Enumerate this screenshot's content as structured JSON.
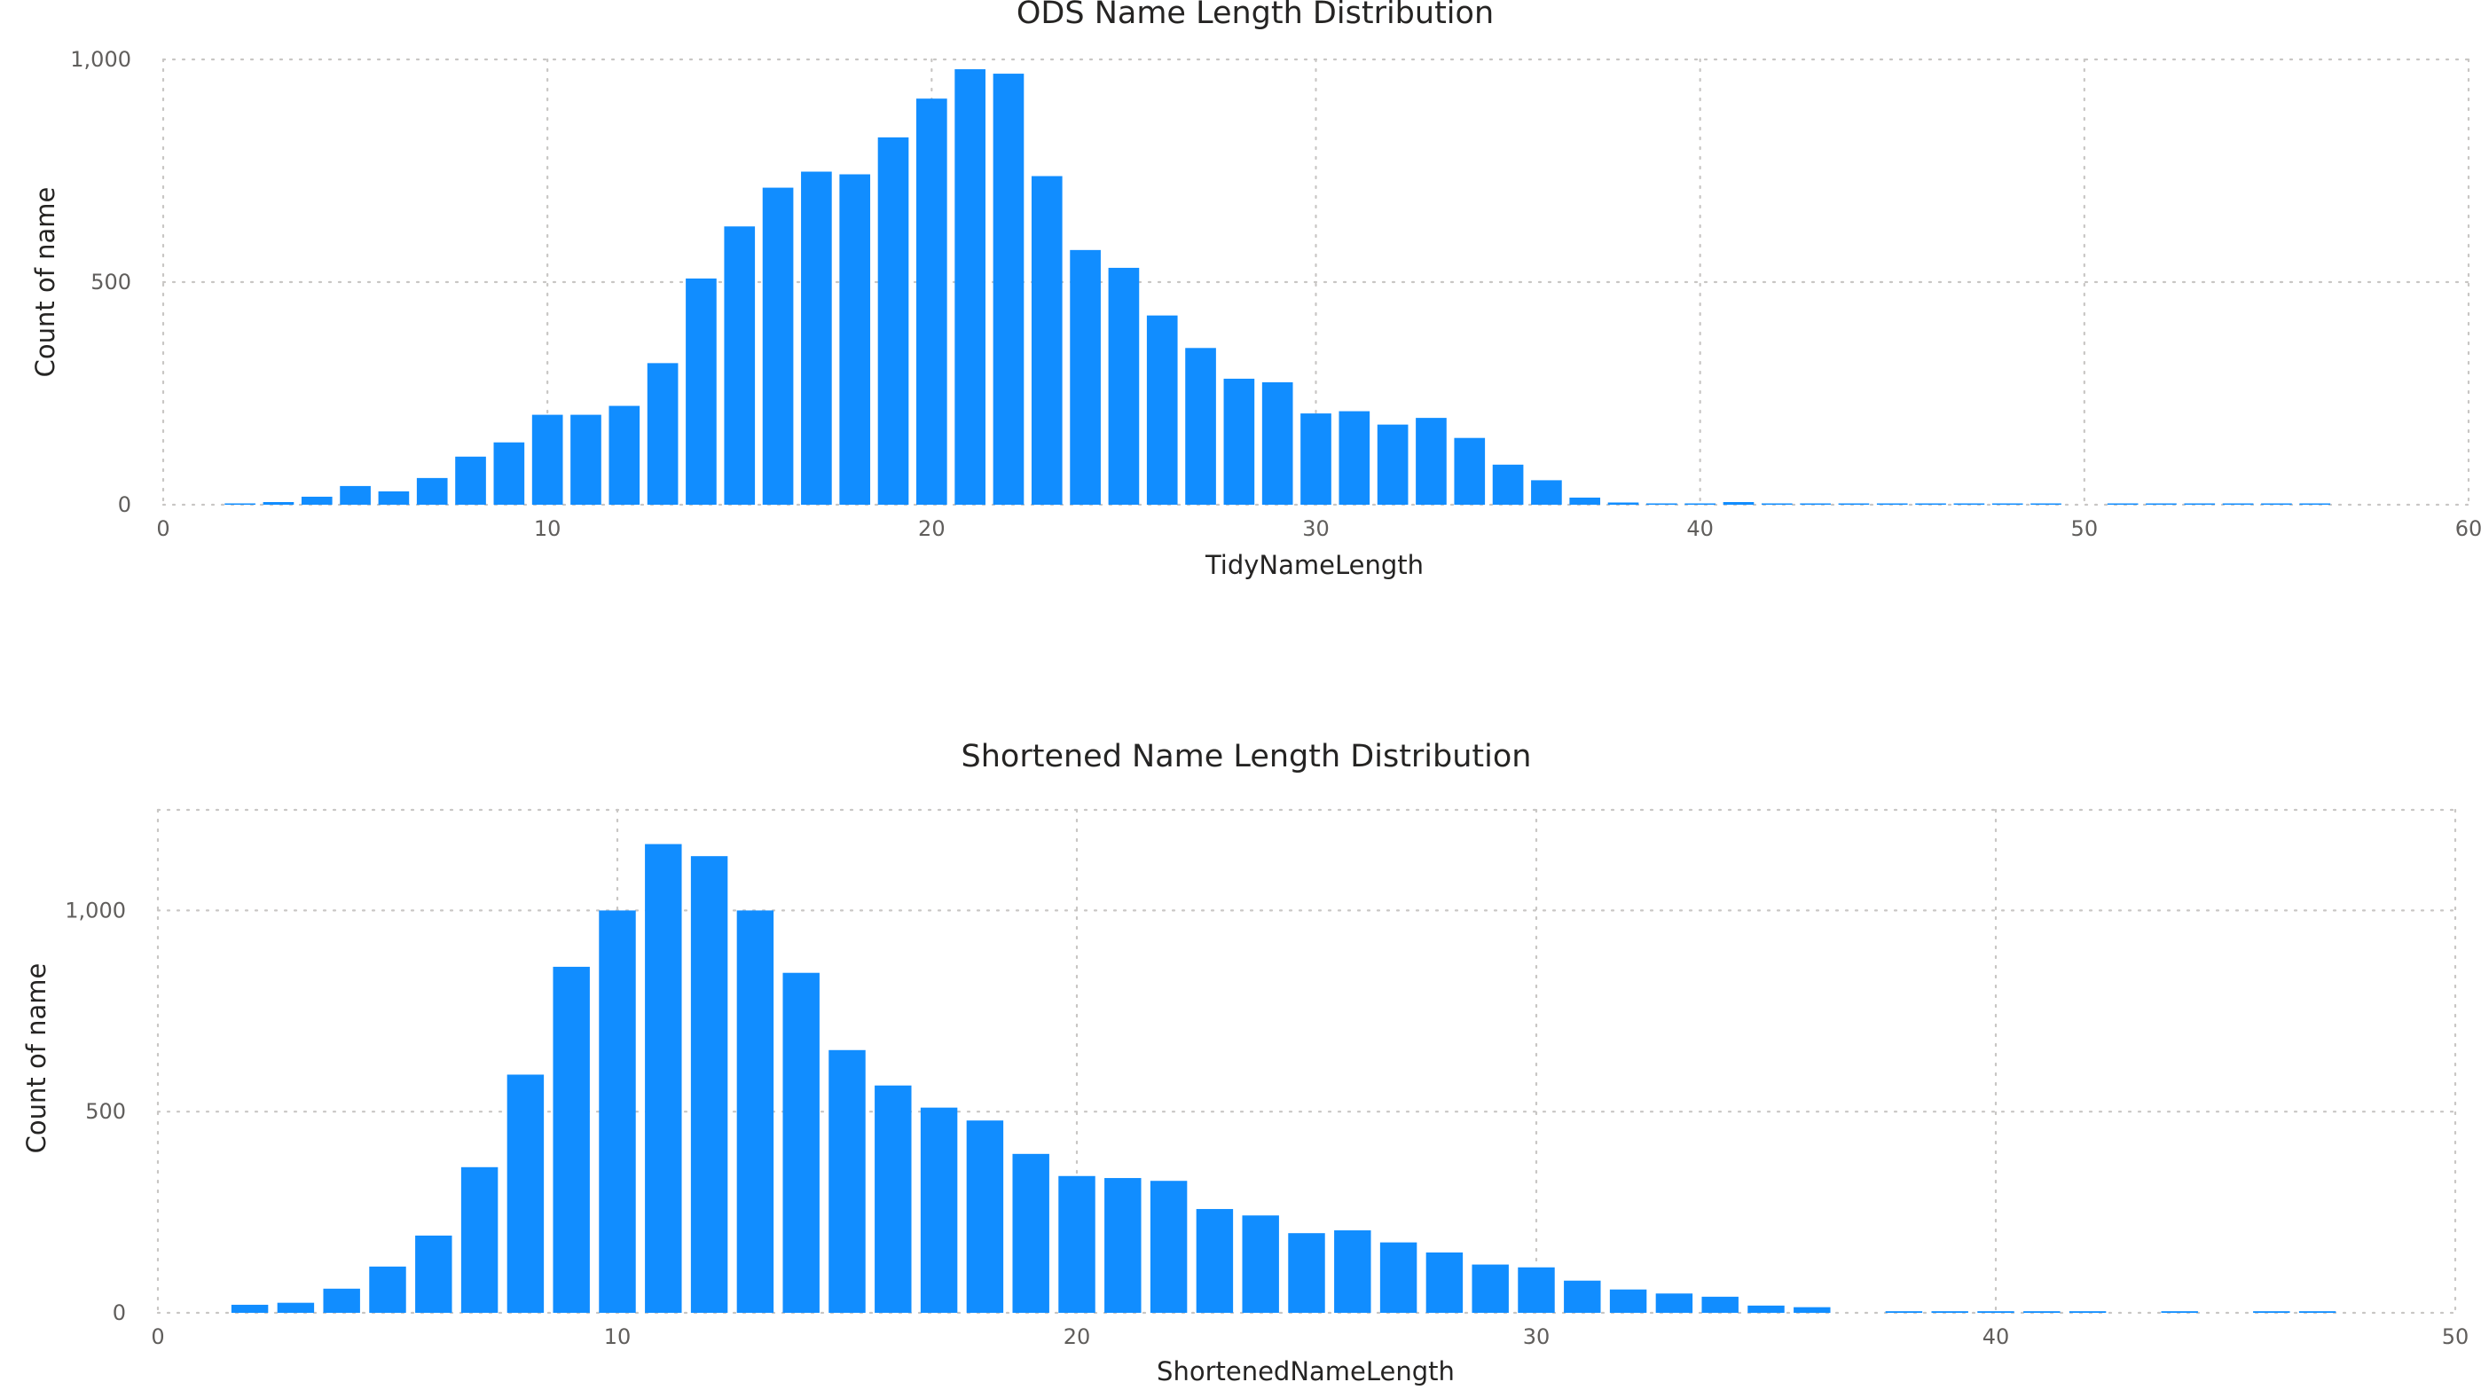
{
  "colors": {
    "bar": "#118DFF",
    "grid": "#c8c6c4",
    "text": "#252423",
    "tick_text": "#605e5c"
  },
  "chart_data": [
    {
      "type": "bar",
      "title": "ODS Name Length Distribution",
      "xlabel": "TidyNameLength",
      "ylabel": "Count of name",
      "xlim": [
        0,
        60
      ],
      "ylim": [
        0,
        1000
      ],
      "xticks": [
        0,
        10,
        20,
        30,
        40,
        50,
        60
      ],
      "xtick_labels": [
        "0",
        "10",
        "20",
        "30",
        "40",
        "50",
        "60"
      ],
      "yticks": [
        0,
        500,
        1000
      ],
      "ytick_labels": [
        "0",
        "500",
        "1,000"
      ],
      "grid": true,
      "x": [
        2,
        3,
        4,
        5,
        6,
        7,
        8,
        9,
        10,
        11,
        12,
        13,
        14,
        15,
        16,
        17,
        18,
        19,
        20,
        21,
        22,
        23,
        24,
        25,
        26,
        27,
        28,
        29,
        30,
        31,
        32,
        33,
        34,
        35,
        36,
        37,
        38,
        39,
        40,
        41,
        42,
        43,
        44,
        45,
        46,
        47,
        48,
        49,
        51,
        52,
        53,
        54,
        55,
        56
      ],
      "values": [
        3,
        6,
        18,
        42,
        30,
        60,
        108,
        140,
        202,
        202,
        222,
        318,
        508,
        625,
        712,
        748,
        742,
        825,
        912,
        978,
        968,
        738,
        572,
        532,
        425,
        352,
        283,
        275,
        205,
        210,
        180,
        195,
        150,
        90,
        55,
        16,
        5,
        3,
        3,
        6,
        3,
        2,
        2,
        2,
        2,
        2,
        2,
        2,
        2,
        2,
        2,
        2,
        2,
        2
      ]
    },
    {
      "type": "bar",
      "title": "Shortened Name Length Distribution",
      "xlabel": "ShortenedNameLength",
      "ylabel": "Count of name",
      "xlim": [
        0,
        50
      ],
      "ylim": [
        0,
        1250
      ],
      "xticks": [
        0,
        10,
        20,
        30,
        40,
        50
      ],
      "xtick_labels": [
        "0",
        "10",
        "20",
        "30",
        "40",
        "50"
      ],
      "yticks": [
        0,
        500,
        1000
      ],
      "ytick_labels": [
        "0",
        "500",
        "1,000"
      ],
      "grid": true,
      "x": [
        2,
        3,
        4,
        5,
        6,
        7,
        8,
        9,
        10,
        11,
        12,
        13,
        14,
        15,
        16,
        17,
        18,
        19,
        20,
        21,
        22,
        23,
        24,
        25,
        26,
        27,
        28,
        29,
        30,
        31,
        32,
        33,
        34,
        35,
        36,
        38,
        39,
        40,
        41,
        42,
        44,
        46,
        47
      ],
      "values": [
        20,
        25,
        60,
        115,
        192,
        362,
        592,
        860,
        1000,
        1165,
        1135,
        1000,
        845,
        653,
        565,
        510,
        478,
        395,
        340,
        335,
        328,
        258,
        242,
        198,
        205,
        175,
        150,
        120,
        113,
        80,
        58,
        48,
        40,
        18,
        14,
        4,
        4,
        4,
        4,
        4,
        4,
        4,
        4
      ]
    }
  ]
}
